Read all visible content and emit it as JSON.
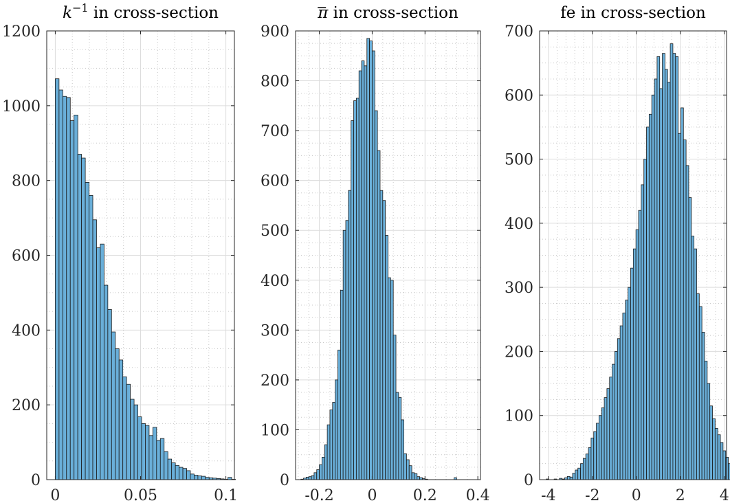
{
  "colors": {
    "bar_fill": "#6aafd9",
    "bar_edge": "#1a1a1a",
    "axis": "#262626",
    "grid_major": "#dcdcdc",
    "grid_minor": "#c8c8c8"
  },
  "chart_data": [
    {
      "type": "bar",
      "title": "$k^{-1}$ in cross-section",
      "title_parts": {
        "base": "k",
        "sup": "−1",
        "rest": " in cross-section"
      },
      "xlim": [
        -0.005,
        0.105
      ],
      "ylim": [
        0,
        1200
      ],
      "xticks": [
        0,
        0.05,
        0.1
      ],
      "xtick_labels": [
        "0",
        "0.05",
        "0.1"
      ],
      "yticks": [
        0,
        200,
        400,
        600,
        800,
        1000,
        1200
      ],
      "ytick_labels": [
        "0",
        "200",
        "400",
        "600",
        "800",
        "1000",
        "1200"
      ],
      "grid": true,
      "bin_start": 0.0,
      "bin_width": 0.0022,
      "values": [
        1072,
        1042,
        1025,
        1022,
        960,
        975,
        870,
        860,
        795,
        760,
        695,
        620,
        630,
        520,
        455,
        395,
        350,
        320,
        275,
        255,
        215,
        200,
        168,
        150,
        145,
        118,
        140,
        105,
        110,
        75,
        55,
        45,
        38,
        33,
        30,
        24,
        15,
        12,
        10,
        9,
        6,
        5,
        4,
        3,
        2,
        1,
        6,
        1
      ]
    },
    {
      "type": "bar",
      "title": "$\\bar{\\pi}$ in cross-section",
      "title_parts": {
        "base": "π",
        "sup": "",
        "rest": " in cross-section"
      },
      "xlim": [
        -0.29,
        0.41
      ],
      "ylim": [
        0,
        900
      ],
      "xticks": [
        -0.2,
        0,
        0.2,
        0.4
      ],
      "xtick_labels": [
        "-0.2",
        "0",
        "0.2",
        "0.4"
      ],
      "yticks": [
        0,
        100,
        200,
        300,
        400,
        500,
        600,
        700,
        800,
        900
      ],
      "ytick_labels": [
        "0",
        "100",
        "200",
        "300",
        "400",
        "500",
        "600",
        "700",
        "800",
        "900"
      ],
      "grid": true,
      "bin_start": -0.27,
      "bin_width": 0.01,
      "values": [
        1,
        3,
        5,
        6,
        8,
        14,
        20,
        30,
        45,
        70,
        110,
        140,
        155,
        200,
        260,
        380,
        500,
        520,
        580,
        720,
        760,
        765,
        820,
        840,
        830,
        885,
        880,
        860,
        740,
        660,
        580,
        560,
        490,
        405,
        400,
        290,
        175,
        165,
        120,
        52,
        40,
        28,
        14,
        12,
        6,
        4,
        2,
        1,
        0,
        0,
        0,
        0,
        0,
        0,
        0,
        0,
        0,
        0,
        4
      ]
    },
    {
      "type": "bar",
      "title": "fe in cross-section",
      "title_parts": {
        "base": "",
        "sup": "",
        "rest": "fe in cross-section"
      },
      "xlim": [
        -4.4,
        4.1
      ],
      "ylim": [
        0,
        700
      ],
      "xticks": [
        -4,
        -2,
        0,
        2,
        4
      ],
      "xtick_labels": [
        "-4",
        "-2",
        "0",
        "2",
        "4"
      ],
      "yticks": [
        0,
        100,
        200,
        300,
        400,
        500,
        600,
        700
      ],
      "ytick_labels": [
        "0",
        "100",
        "200",
        "300",
        "400",
        "500",
        "600",
        "700"
      ],
      "grid": true,
      "bin_start": -4.1,
      "bin_width": 0.12,
      "values": [
        1,
        0,
        0,
        1,
        0,
        2,
        1,
        3,
        5,
        4,
        10,
        15,
        18,
        25,
        33,
        40,
        50,
        65,
        75,
        88,
        100,
        112,
        128,
        142,
        160,
        180,
        200,
        220,
        240,
        260,
        280,
        300,
        330,
        360,
        390,
        420,
        460,
        500,
        550,
        570,
        600,
        625,
        660,
        610,
        665,
        640,
        620,
        680,
        665,
        660,
        540,
        580,
        530,
        490,
        440,
        380,
        360,
        290,
        270,
        230,
        185,
        150,
        115,
        95,
        80,
        70,
        58,
        45,
        35,
        25,
        15,
        10,
        9,
        5,
        2,
        2,
        1,
        0,
        0,
        0,
        1
      ]
    }
  ]
}
